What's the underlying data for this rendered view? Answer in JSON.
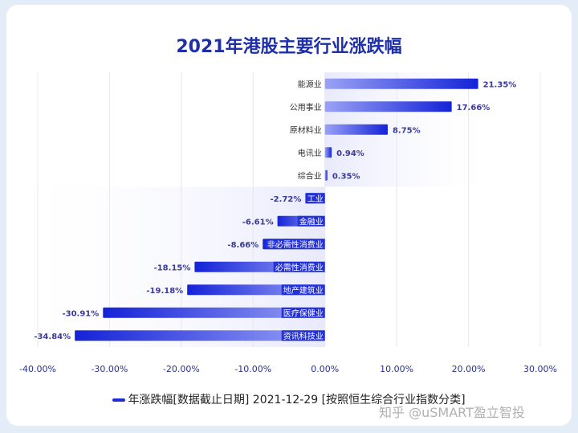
{
  "chart_data": {
    "type": "bar",
    "orientation": "horizontal",
    "title": "2021年港股主要行业涨跌幅",
    "categories": [
      "能源业",
      "公用事业",
      "原材料业",
      "电讯业",
      "综合业",
      "工业",
      "金融业",
      "非必需性消费业",
      "必需性消费业",
      "地产建筑业",
      "医疗保健业",
      "资讯科技业"
    ],
    "series": [
      {
        "name": "年涨跌幅[数据截止日期] 2021-12-29  [按照恒生综合行业指数分类]",
        "values": [
          21.35,
          17.66,
          8.75,
          0.94,
          0.35,
          -2.72,
          -6.61,
          -8.66,
          -18.15,
          -19.18,
          -30.91,
          -34.84
        ]
      }
    ],
    "value_labels": [
      "21.35%",
      "17.66%",
      "8.75%",
      "0.94%",
      "0.35%",
      "-2.72%",
      "-6.61%",
      "-8.66%",
      "-18.15%",
      "-19.18%",
      "-30.91%",
      "-34.84%"
    ],
    "xlim": [
      -40,
      30
    ],
    "xticks": [
      -40,
      -30,
      -20,
      -10,
      0,
      10,
      20,
      30
    ],
    "xtick_labels": [
      "-40.00%",
      "-30.00%",
      "-20.00%",
      "-10.00%",
      "0.00%",
      "10.00%",
      "20.00%",
      "30.00%"
    ],
    "grid": true,
    "legend": "bottom-center",
    "bar_color": "#1e2ed6"
  },
  "watermark": "知乎 @uSMART盈立智投"
}
